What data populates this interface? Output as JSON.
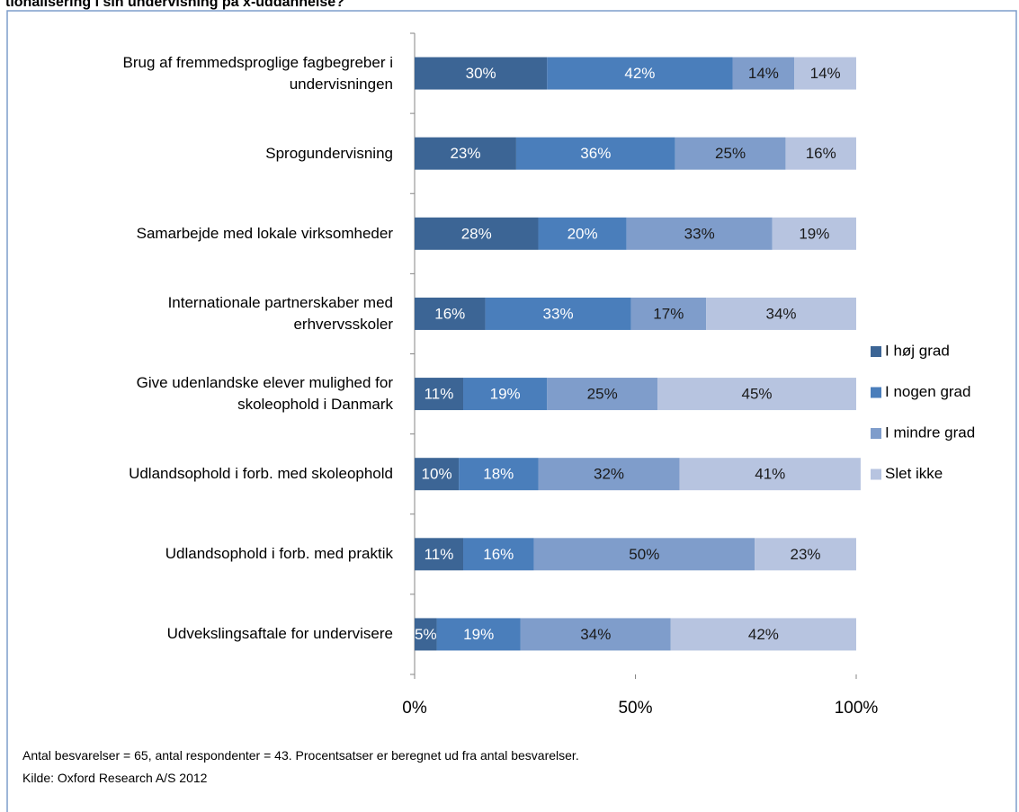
{
  "chart_data": {
    "type": "stacked_bar_horizontal",
    "title": "tionalisering i sin undervisning på x-uddannelse?",
    "categories": [
      "Brug af fremmedsproglige fagbegreber i\nundervisningen",
      "Sprogundervisning",
      "Samarbejde med lokale virksomheder",
      "Internationale partnerskaber med\nerhvervsskoler",
      "Give udenlandske elever mulighed for\nskoleophold i Danmark",
      "Udlandsophold i forb. med skoleophold",
      "Udlandsophold i forb. med praktik",
      "Udvekslingsaftale for undervisere"
    ],
    "series": [
      {
        "name": "I høj grad",
        "color": "#3c6595",
        "values": [
          30,
          23,
          28,
          16,
          11,
          10,
          11,
          5
        ],
        "value_labels": [
          "30%",
          "23%",
          "28%",
          "16%",
          "11%",
          "10%",
          "11%",
          "5%"
        ]
      },
      {
        "name": "I nogen grad",
        "color": "#4a7ebb",
        "values": [
          42,
          36,
          20,
          33,
          19,
          18,
          16,
          19
        ],
        "value_labels": [
          "42%",
          "36%",
          "20%",
          "33%",
          "19%",
          "18%",
          "16%",
          "19%"
        ]
      },
      {
        "name": "I mindre grad",
        "color": "#7f9dcb",
        "values": [
          14,
          25,
          33,
          17,
          25,
          32,
          50,
          34
        ],
        "value_labels": [
          "14%",
          "25%",
          "33%",
          "17%",
          "25%",
          "32%",
          "50%",
          "34%"
        ]
      },
      {
        "name": "Slet ikke",
        "color": "#b7c4e0",
        "values": [
          14,
          16,
          19,
          34,
          45,
          41,
          23,
          42
        ],
        "value_labels": [
          "14%",
          "16%",
          "19%",
          "34%",
          "45%",
          "41%",
          "23%",
          "42%"
        ]
      }
    ],
    "xlim": [
      0,
      100
    ],
    "xticks": [
      {
        "value": 0,
        "label": "0%"
      },
      {
        "value": 50,
        "label": "50%"
      },
      {
        "value": 100,
        "label": "100%"
      }
    ],
    "legend": "right",
    "notes": [
      "Antal besvarelser =  65, antal respondenter = 43. Procentsatser er beregnet ud fra antal besvarelser.",
      "Kilde: Oxford Research A/S 2012"
    ]
  }
}
